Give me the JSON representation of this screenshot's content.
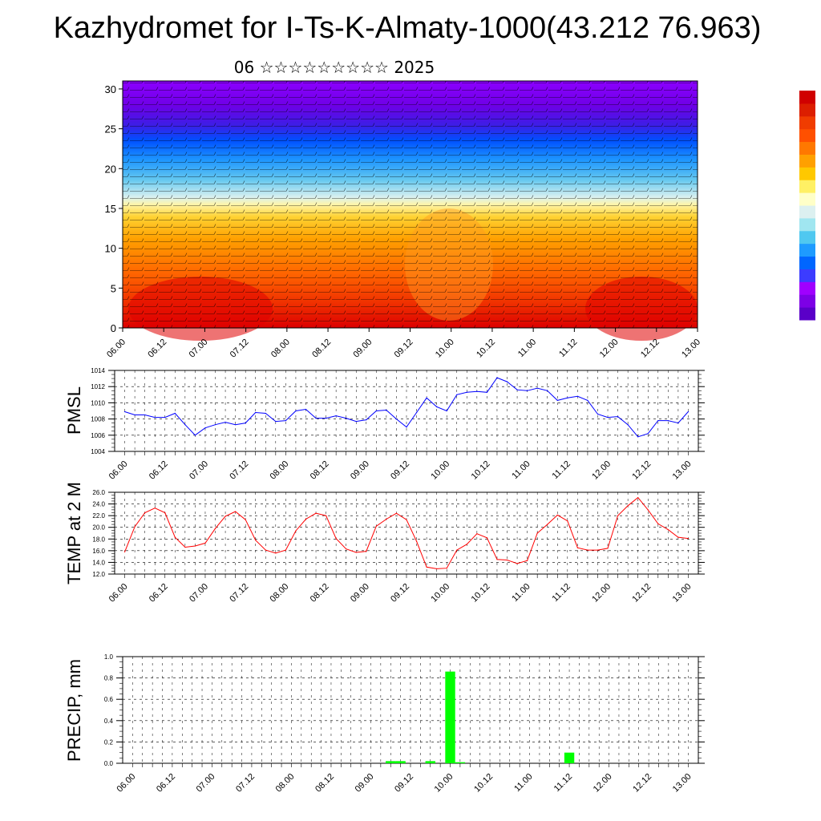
{
  "header": {
    "title": "Kazhydromet for I-Ts-K-Almaty-1000(43.212 76.963)",
    "subtitle": "06 ☆☆☆☆☆☆☆☆☆ 2025"
  },
  "colors": {
    "pmsl_line": "#0000ff",
    "temp_line": "#ff0000",
    "precip_bar": "#00ff00",
    "temp_gradient_warm": "#e60000",
    "temp_gradient_cold": "#3300cc"
  },
  "chart_data": [
    {
      "type": "heatmap",
      "name": "cross_section",
      "x_tick_labels": [
        "06.00",
        "06.12",
        "07.00",
        "07.12",
        "08.00",
        "08.12",
        "09.00",
        "09.12",
        "10.00",
        "10.12",
        "11.00",
        "11.12",
        "12.00",
        "12.12",
        "13.00"
      ],
      "y_tick_labels": [
        "0",
        "5",
        "10",
        "15",
        "20",
        "25",
        "30"
      ],
      "ylim": [
        0,
        31
      ],
      "colorbar": [
        "#5a00c8",
        "#7d00e6",
        "#a000ff",
        "#3c3cff",
        "#0066ff",
        "#1e9bff",
        "#50c8f0",
        "#a0e6f0",
        "#dcf0f0",
        "#ffffc8",
        "#fff064",
        "#ffc800",
        "#ffa000",
        "#ff7800",
        "#ff5000",
        "#f03c00",
        "#dc1e00",
        "#d00000"
      ]
    },
    {
      "type": "line",
      "name": "PMSL",
      "ylabel": "PMSL",
      "ylim": [
        1004,
        1014
      ],
      "y_tick_labels": [
        "1004",
        "1006",
        "1008",
        "1010",
        "1012",
        "1014"
      ],
      "x_tick_labels": [
        "06.00",
        "06.12",
        "07.00",
        "07.12",
        "08.00",
        "08.12",
        "09.00",
        "09.12",
        "10.00",
        "10.12",
        "11.00",
        "11.12",
        "12.00",
        "12.12",
        "13.00"
      ],
      "values": [
        1008.9,
        1008.5,
        1008.5,
        1008.2,
        1008.2,
        1008.7,
        1007.3,
        1006.0,
        1006.9,
        1007.3,
        1007.6,
        1007.3,
        1007.5,
        1008.8,
        1008.7,
        1007.7,
        1007.8,
        1009.0,
        1009.2,
        1008.1,
        1008.1,
        1008.4,
        1008.1,
        1007.7,
        1007.9,
        1009.0,
        1009.1,
        1008.0,
        1007.0,
        1008.8,
        1010.6,
        1009.5,
        1009.0,
        1011.0,
        1011.3,
        1011.4,
        1011.3,
        1013.1,
        1012.6,
        1011.6,
        1011.5,
        1011.8,
        1011.5,
        1010.3,
        1010.6,
        1010.8,
        1010.3,
        1008.6,
        1008.2,
        1008.3,
        1007.3,
        1005.8,
        1006.2,
        1007.8,
        1007.8,
        1007.5,
        1008.9
      ]
    },
    {
      "type": "line",
      "name": "TEMP at 2 M",
      "ylabel": "TEMP at 2 M",
      "ylim": [
        12,
        26
      ],
      "y_tick_labels": [
        "12.0",
        "14.0",
        "16.0",
        "18.0",
        "20.0",
        "22.0",
        "24.0",
        "26.0"
      ],
      "x_tick_labels": [
        "06.00",
        "06.12",
        "07.00",
        "07.12",
        "08.00",
        "08.12",
        "09.00",
        "09.12",
        "10.00",
        "10.12",
        "11.00",
        "11.12",
        "12.00",
        "12.12",
        "13.00"
      ],
      "values": [
        15.8,
        20.1,
        22.5,
        23.3,
        22.5,
        18.3,
        16.6,
        16.8,
        17.3,
        19.8,
        21.9,
        22.7,
        21.3,
        17.8,
        16.1,
        15.6,
        16.1,
        19.4,
        21.4,
        22.4,
        22.0,
        18.1,
        16.3,
        15.7,
        15.9,
        20.2,
        21.4,
        22.4,
        21.3,
        17.6,
        13.2,
        12.9,
        13.0,
        16.1,
        17.1,
        18.9,
        18.2,
        14.5,
        14.4,
        13.8,
        14.3,
        19.0,
        20.5,
        22.1,
        21.1,
        16.5,
        16.1,
        16.1,
        16.4,
        22.0,
        23.7,
        25.1,
        23.0,
        20.6,
        19.6,
        18.3,
        18.1
      ]
    },
    {
      "type": "bar",
      "name": "PRECIP, mm",
      "ylabel": "PRECIP, mm",
      "ylim": [
        0,
        1.0
      ],
      "y_tick_labels": [
        "0.0",
        "0.2",
        "0.4",
        "0.6",
        "0.8",
        "1.0"
      ],
      "x_tick_labels": [
        "06.00",
        "06.12",
        "07.00",
        "07.12",
        "08.00",
        "08.12",
        "09.00",
        "09.12",
        "10.00",
        "10.12",
        "11.00",
        "11.12",
        "12.00",
        "12.12",
        "13.00"
      ],
      "values": [
        0,
        0,
        0,
        0,
        0,
        0,
        0,
        0,
        0,
        0,
        0,
        0,
        0,
        0,
        0,
        0,
        0,
        0,
        0,
        0,
        0,
        0,
        0,
        0,
        0,
        0,
        0.02,
        0.02,
        0,
        0,
        0.02,
        0,
        0.86,
        0.01,
        0,
        0,
        0,
        0,
        0,
        0,
        0,
        0,
        0,
        0,
        0.1,
        0,
        0,
        0,
        0,
        0,
        0,
        0,
        0,
        0,
        0,
        0,
        0
      ]
    }
  ]
}
